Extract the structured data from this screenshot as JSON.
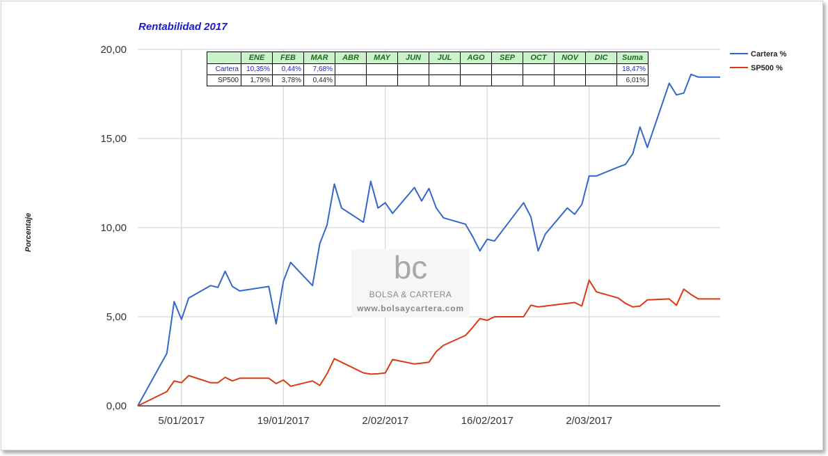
{
  "chart_data": {
    "type": "line",
    "title": "Rentabilidad 2017",
    "ylabel": "Porcentaje",
    "xlabel": "",
    "ylim": [
      0,
      20
    ],
    "yticks": [
      "0,00",
      "5,00",
      "10,00",
      "15,00",
      "20,00"
    ],
    "xticks": [
      {
        "date": "2017-01-05",
        "label": "5/01/2017"
      },
      {
        "date": "2017-01-19",
        "label": "19/01/2017"
      },
      {
        "date": "2017-02-02",
        "label": "2/02/2017"
      },
      {
        "date": "2017-02-16",
        "label": "16/02/2017"
      },
      {
        "date": "2017-03-02",
        "label": "2/03/2017"
      }
    ],
    "x": [
      "2016-12-30",
      "2017-01-03",
      "2017-01-04",
      "2017-01-05",
      "2017-01-06",
      "2017-01-09",
      "2017-01-10",
      "2017-01-11",
      "2017-01-12",
      "2017-01-13",
      "2017-01-17",
      "2017-01-18",
      "2017-01-19",
      "2017-01-20",
      "2017-01-23",
      "2017-01-24",
      "2017-01-25",
      "2017-01-26",
      "2017-01-27",
      "2017-01-30",
      "2017-01-31",
      "2017-02-01",
      "2017-02-02",
      "2017-02-03",
      "2017-02-06",
      "2017-02-07",
      "2017-02-08",
      "2017-02-09",
      "2017-02-10",
      "2017-02-13",
      "2017-02-14",
      "2017-02-15",
      "2017-02-16",
      "2017-02-17",
      "2017-02-21",
      "2017-02-22",
      "2017-02-23",
      "2017-02-24",
      "2017-02-27",
      "2017-02-28",
      "2017-03-01",
      "2017-03-02",
      "2017-03-03",
      "2017-03-06",
      "2017-03-07",
      "2017-03-08",
      "2017-03-09",
      "2017-03-10",
      "2017-03-13",
      "2017-03-14",
      "2017-03-15",
      "2017-03-16",
      "2017-03-17",
      "2017-03-20"
    ],
    "series": [
      {
        "name": "Cartera %",
        "color": "#3366cc",
        "values": [
          0.0,
          2.95,
          5.85,
          4.85,
          6.05,
          6.75,
          6.65,
          7.55,
          6.7,
          6.45,
          6.7,
          4.6,
          7.0,
          8.05,
          6.75,
          9.1,
          10.15,
          12.45,
          11.1,
          10.3,
          12.6,
          11.1,
          11.4,
          10.8,
          12.25,
          11.5,
          12.2,
          11.1,
          10.55,
          10.2,
          9.5,
          8.7,
          9.35,
          9.25,
          11.4,
          10.6,
          8.7,
          9.65,
          11.1,
          10.75,
          11.3,
          12.9,
          12.9,
          13.4,
          13.55,
          14.15,
          15.65,
          14.5,
          18.1,
          17.45,
          17.55,
          18.6,
          18.45,
          18.45
        ]
      },
      {
        "name": "SP500 %",
        "color": "#dc3912",
        "values": [
          0.0,
          0.8,
          1.4,
          1.3,
          1.7,
          1.3,
          1.3,
          1.6,
          1.4,
          1.55,
          1.55,
          1.25,
          1.45,
          1.1,
          1.4,
          1.15,
          1.8,
          2.65,
          2.45,
          1.85,
          1.78,
          1.8,
          1.85,
          2.6,
          2.35,
          2.4,
          2.45,
          3.05,
          3.4,
          3.95,
          4.4,
          4.9,
          4.8,
          5.0,
          5.0,
          5.65,
          5.55,
          5.6,
          5.75,
          5.8,
          5.6,
          7.05,
          6.4,
          6.05,
          5.75,
          5.55,
          5.6,
          5.95,
          6.0,
          5.65,
          6.55,
          6.25,
          6.0,
          6.0
        ]
      }
    ],
    "legend_position": "right",
    "grid": true
  },
  "legend": [
    {
      "label": "Cartera %",
      "color": "#3366cc"
    },
    {
      "label": "SP500 %",
      "color": "#dc3912"
    }
  ],
  "summary_table": {
    "headers": [
      "",
      "ENE",
      "FEB",
      "MAR",
      "ABR",
      "MAY",
      "JUN",
      "JUL",
      "AGO",
      "SEP",
      "OCT",
      "NOV",
      "DIC",
      "Suma"
    ],
    "rows": [
      {
        "label": "Cartera",
        "cells": [
          "10,35%",
          "0,44%",
          "7,68%",
          "",
          "",
          "",
          "",
          "",
          "",
          "",
          "",
          "",
          "18,47%"
        ]
      },
      {
        "label": "SP500",
        "cells": [
          "1,79%",
          "3,78%",
          "0,44%",
          "",
          "",
          "",
          "",
          "",
          "",
          "",
          "",
          "",
          "6,01%"
        ]
      }
    ]
  },
  "watermark": {
    "logo": "bc",
    "name": "BOLSA & CARTERA",
    "url": "www.bolsaycartera.com"
  }
}
